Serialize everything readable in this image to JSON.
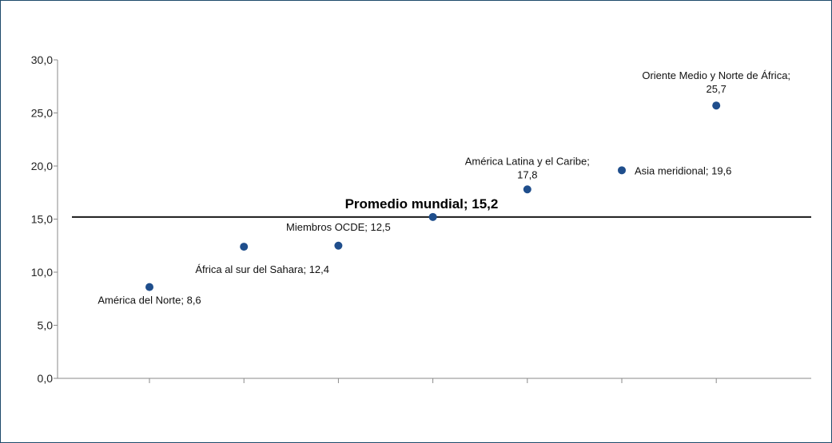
{
  "chart_data": {
    "type": "scatter",
    "ylim": [
      0,
      30
    ],
    "y_ticks": [
      "0,0",
      "5,0",
      "10,0",
      "15,0",
      "20,0",
      "25,0",
      "30,0"
    ],
    "gridlines": false,
    "legend": "none",
    "marker_color": "#1f4e8c",
    "points": [
      {
        "x": 1,
        "y": 8.6,
        "label": "América del Norte; 8,6"
      },
      {
        "x": 2,
        "y": 12.4,
        "label": "África al sur del Sahara; 12,4"
      },
      {
        "x": 3,
        "y": 12.5,
        "label": "Miembros OCDE; 12,5"
      },
      {
        "x": 4,
        "y": 15.2,
        "label": ""
      },
      {
        "x": 5,
        "y": 17.8,
        "label": "América Latina y el Caribe; 17,8"
      },
      {
        "x": 6,
        "y": 19.6,
        "label": "Asia meridional; 19,6"
      },
      {
        "x": 7,
        "y": 25.7,
        "label": "Oriente Medio y Norte de África; 25,7"
      }
    ],
    "reference_line": {
      "y": 15.2,
      "label": "Promedio mundial; 15,2"
    }
  }
}
